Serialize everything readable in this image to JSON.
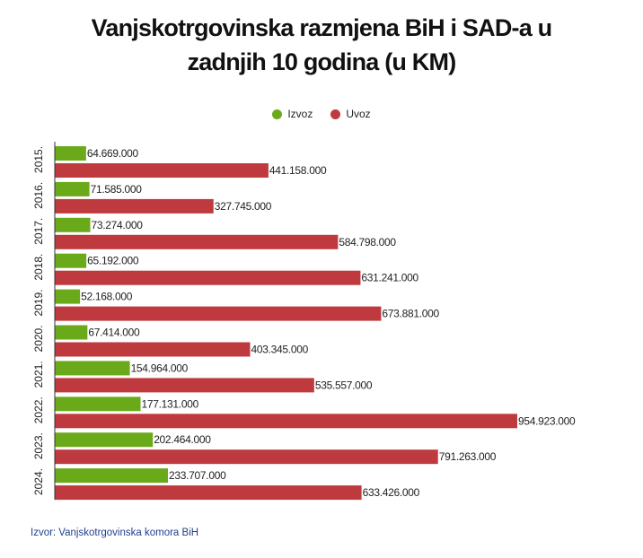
{
  "chart_data": {
    "type": "bar",
    "orientation": "horizontal",
    "title": "Vanjskotrgovinska razmjena BiH i SAD-a u zadnjih 10 godina (u KM)",
    "title_lines": [
      "Vanjskotrgovinska razmjena BiH i SAD-a u",
      "zadnjih 10 godina (u KM)"
    ],
    "categories": [
      "2015.",
      "2016.",
      "2017.",
      "2018.",
      "2019.",
      "2020.",
      "2021.",
      "2022.",
      "2023.",
      "2024."
    ],
    "series": [
      {
        "name": "Izvoz",
        "color": "#6aaa1a",
        "values": [
          64669000,
          71585000,
          73274000,
          65192000,
          52168000,
          67414000,
          154964000,
          177131000,
          202464000,
          233707000
        ],
        "labels": [
          "64.669.000",
          "71.585.000",
          "73.274.000",
          "65.192.000",
          "52.168.000",
          "67.414.000",
          "154.964.000",
          "177.131.000",
          "202.464.000",
          "233.707.000"
        ]
      },
      {
        "name": "Uvoz",
        "color": "#bf3a3e",
        "values": [
          441158000,
          327745000,
          584798000,
          631241000,
          673881000,
          403345000,
          535557000,
          954923000,
          791263000,
          633426000
        ],
        "labels": [
          "441.158.000",
          "327.745.000",
          "584.798.000",
          "631.241.000",
          "673.881.000",
          "403.345.000",
          "535.557.000",
          "954.923.000",
          "791.263.000",
          "633.426.000"
        ]
      }
    ],
    "xlim": [
      0,
      954923000
    ],
    "grid": false,
    "legend_position": "top-center"
  },
  "source": "Izvor: Vanjskotrgovinska komora BiH"
}
